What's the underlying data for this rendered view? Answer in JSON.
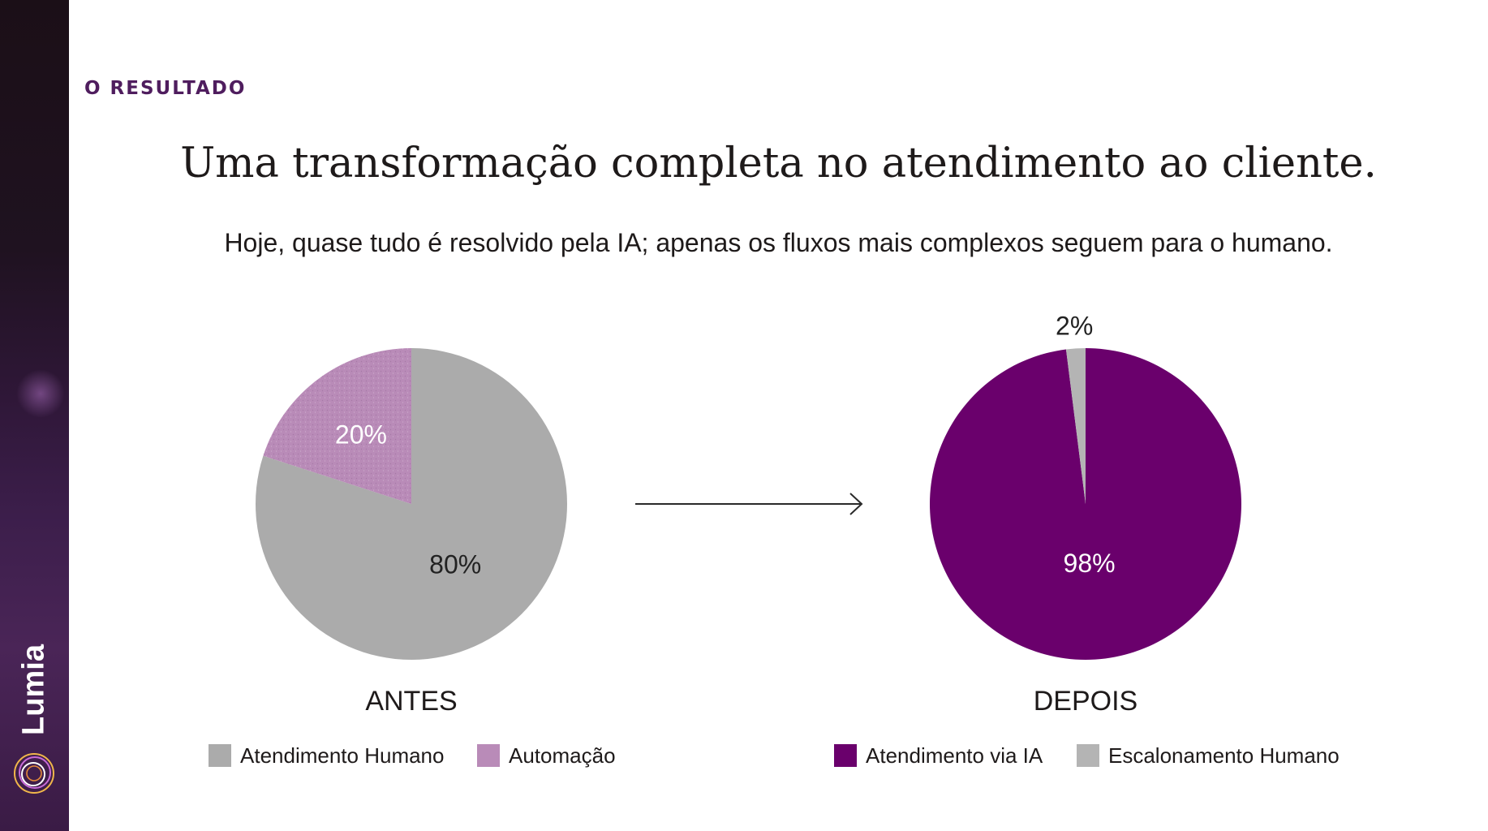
{
  "brand": {
    "name": "Lumia"
  },
  "header": {
    "eyebrow": "O RESULTADO",
    "title": "Uma transformação completa no atendimento ao cliente.",
    "subtitle": "Hoje, quase tudo é resolvido pela IA; apenas os fluxos mais complexos seguem para o humano."
  },
  "colors": {
    "human_gray": "#ababab",
    "automation_lilac": "#b98bb8",
    "ai_purple": "#6a006c",
    "escalation_gray": "#b4b4b4",
    "accent": "#4f1d5e"
  },
  "chart_data": [
    {
      "type": "pie",
      "caption": "ANTES",
      "slices": [
        {
          "name": "Atendimento Humano",
          "value": 80,
          "label": "80%",
          "color": "#ababab",
          "label_color": "#222222"
        },
        {
          "name": "Automação",
          "value": 20,
          "label": "20%",
          "color": "#b98bb8",
          "label_color": "#ffffff"
        }
      ],
      "legend": [
        "Atendimento Humano",
        "Automação"
      ],
      "legend_placement": "bottom"
    },
    {
      "type": "pie",
      "caption": "DEPOIS",
      "slices": [
        {
          "name": "Atendimento via IA",
          "value": 98,
          "label": "98%",
          "color": "#6a006c",
          "label_color": "#ffffff"
        },
        {
          "name": "Escalonamento Humano",
          "value": 2,
          "label": "2%",
          "color": "#b4b4b4",
          "label_color": "#222222"
        }
      ],
      "legend": [
        "Atendimento via IA",
        "Escalonamento Humano"
      ],
      "legend_placement": "bottom"
    }
  ]
}
